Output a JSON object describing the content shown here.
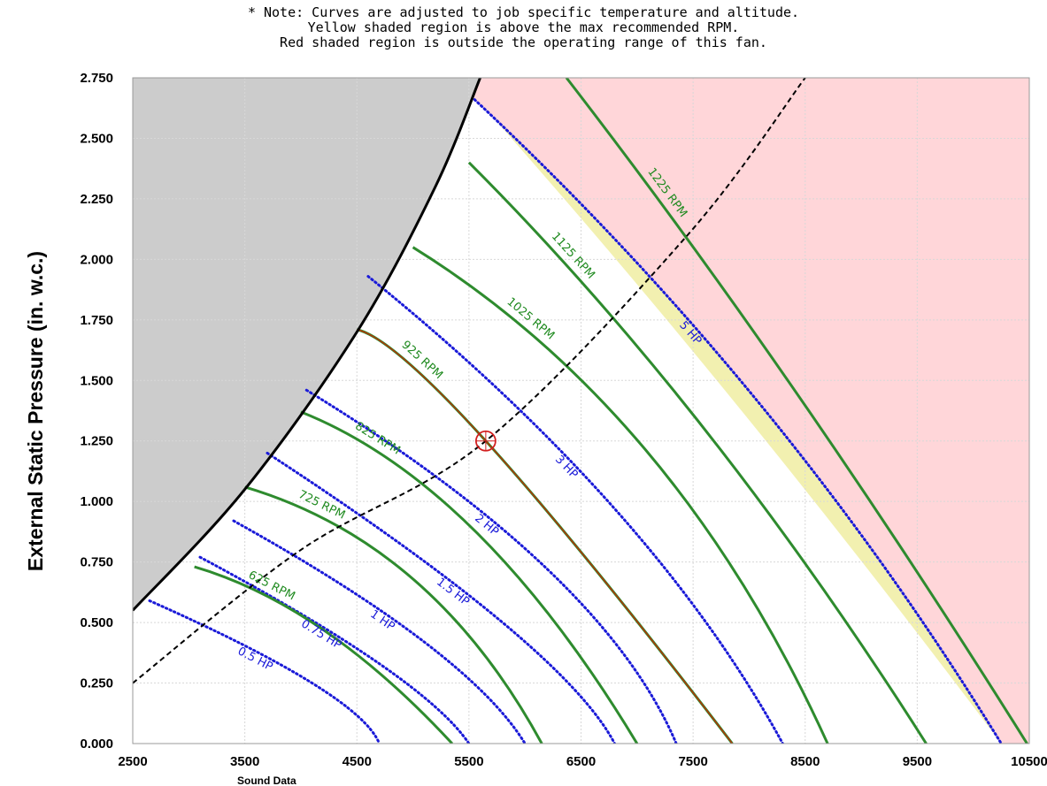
{
  "notes": [
    "* Note: Curves are adjusted to job specific temperature and altitude.",
    "Yellow shaded region is above the max recommended RPM.",
    "Red shaded region is outside the operating range of this fan."
  ],
  "colors": {
    "rpm": "#2e8b2e",
    "hp": "#1a1ad8",
    "system_curve": "#000000",
    "gray_region": "#cccccc",
    "red_region": "#ffd6d9",
    "yellow_region": "#f2f0b0",
    "selected_curve": "#cc2200"
  },
  "chart_data": {
    "type": "line",
    "ylabel": "External Static Pressure (in. w.c.)",
    "xlabel": "",
    "x_caption": "Sound Data",
    "xlim": [
      2500,
      10500
    ],
    "ylim": [
      0,
      2.75
    ],
    "x_ticks": [
      "2500",
      "3500",
      "4500",
      "5500",
      "6500",
      "7500",
      "8500",
      "9500",
      "10500"
    ],
    "y_ticks": [
      "0.000",
      "0.250",
      "0.500",
      "0.750",
      "1.000",
      "1.250",
      "1.500",
      "1.750",
      "2.000",
      "2.250",
      "2.500",
      "2.750"
    ],
    "grid": true,
    "rpm_curves": [
      {
        "label": "625 RPM",
        "points": [
          [
            3050,
            0.73
          ],
          [
            4200,
            0.47
          ],
          [
            5350,
            0.0
          ]
        ]
      },
      {
        "label": "725 RPM",
        "points": [
          [
            3500,
            1.06
          ],
          [
            5000,
            0.68
          ],
          [
            6150,
            0.0
          ]
        ]
      },
      {
        "label": "825 RPM",
        "points": [
          [
            4000,
            1.37
          ],
          [
            5550,
            0.88
          ],
          [
            7000,
            0.0
          ]
        ]
      },
      {
        "label": "925 RPM",
        "points": [
          [
            4500,
            1.71
          ],
          [
            5650,
            1.25
          ],
          [
            7850,
            0.0
          ]
        ]
      },
      {
        "label": "1025 RPM",
        "points": [
          [
            5000,
            2.05
          ],
          [
            7100,
            1.2
          ],
          [
            8700,
            0.0
          ]
        ]
      },
      {
        "label": "1125 RPM",
        "points": [
          [
            5500,
            2.4
          ],
          [
            7600,
            1.3
          ],
          [
            9580,
            0.0
          ]
        ]
      },
      {
        "label": "1225 RPM",
        "points": [
          [
            6370,
            2.75
          ],
          [
            8420,
            1.45
          ],
          [
            10480,
            0.0
          ]
        ]
      }
    ],
    "hp_curves": [
      {
        "label": "0.5 HP",
        "points": [
          [
            2650,
            0.59
          ],
          [
            4100,
            0.25
          ],
          [
            4700,
            0.0
          ]
        ]
      },
      {
        "label": "0.75 HP",
        "points": [
          [
            3100,
            0.77
          ],
          [
            4700,
            0.33
          ],
          [
            5500,
            0.0
          ]
        ]
      },
      {
        "label": "1 HP",
        "points": [
          [
            3400,
            0.92
          ],
          [
            5100,
            0.42
          ],
          [
            6000,
            0.0
          ]
        ]
      },
      {
        "label": "1.5 HP",
        "points": [
          [
            3700,
            1.2
          ],
          [
            5800,
            0.5
          ],
          [
            6800,
            0.0
          ]
        ]
      },
      {
        "label": "2 HP",
        "points": [
          [
            4050,
            1.46
          ],
          [
            6200,
            0.72
          ],
          [
            7350,
            0.0
          ]
        ]
      },
      {
        "label": "3 HP",
        "points": [
          [
            4600,
            1.93
          ],
          [
            6800,
            0.97
          ],
          [
            8300,
            0.0
          ]
        ]
      },
      {
        "label": "5 HP",
        "points": [
          [
            5550,
            2.66
          ],
          [
            8100,
            1.4
          ],
          [
            10250,
            0.0
          ]
        ]
      }
    ],
    "system_curve": {
      "points": [
        [
          2500,
          0.25
        ],
        [
          4000,
          0.8
        ],
        [
          5650,
          1.25
        ],
        [
          7450,
          2.1
        ],
        [
          8500,
          2.75
        ]
      ]
    },
    "operating_point": {
      "x": 5650,
      "y": 1.25
    },
    "operating_limit_curve": {
      "points": [
        [
          2500,
          0.55
        ],
        [
          3500,
          1.05
        ],
        [
          4500,
          1.7
        ],
        [
          5200,
          2.3
        ],
        [
          5600,
          2.75
        ]
      ]
    },
    "max_rpm_curve": {
      "points": [
        [
          5400,
          2.75
        ],
        [
          7800,
          1.45
        ],
        [
          10250,
          0.0
        ]
      ]
    },
    "regions": {
      "gray": "left of operating limit",
      "yellow": "above max recommended RPM",
      "red": "outside operating range"
    }
  }
}
